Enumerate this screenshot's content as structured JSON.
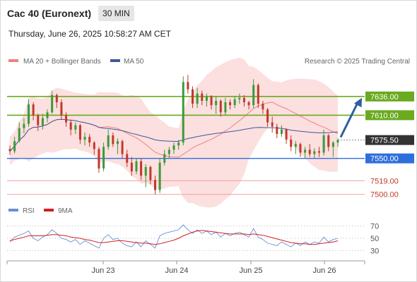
{
  "header": {
    "title": "Cac 40 (Euronext)",
    "interval": "30 MIN",
    "datetime": "Thursday, June 26, 2025 10:58:27 AM CET"
  },
  "legend": {
    "ma20_label": "MA 20 + Bollinger Bands",
    "ma50_label": "MA 50",
    "source": "Research © 2025 Trading Central",
    "rsi_label": "RSI",
    "rsi_ma_label": "9MA"
  },
  "colors": {
    "ma20": "#f08080",
    "bollinger_fill": "#fbd9d9",
    "ma50": "#3d5a99",
    "green_level": "#6aaa1f",
    "blue_level": "#2f6fdb",
    "red_level": "#f2a0a0",
    "price_label": "#333333",
    "arrow": "#2e5fa0",
    "candle_up": "#3a9a3a",
    "candle_down": "#c0392b",
    "rsi": "#6b8fd6",
    "rsi_ma": "#d02020"
  },
  "chart_data": [
    {
      "type": "candlestick",
      "title": "Cac 40 (Euronext)",
      "ylim": [
        7488,
        7676
      ],
      "x_ticks": [
        "Jun 23",
        "Jun 24",
        "Jun 25",
        "Jun 26"
      ],
      "current_price": {
        "label": "7575.50",
        "value": 7575.5
      },
      "levels": [
        {
          "label": "7636.00",
          "value": 7636,
          "kind": "resistance"
        },
        {
          "label": "7610.00",
          "value": 7610,
          "kind": "resistance"
        },
        {
          "label": "7550.00",
          "value": 7550,
          "kind": "pivot"
        },
        {
          "label": "7519.00",
          "value": 7519,
          "kind": "support"
        },
        {
          "label": "7500.00",
          "value": 7500,
          "kind": "support"
        }
      ],
      "candles": [
        [
          7563,
          7568,
          7555,
          7560
        ],
        [
          7560,
          7580,
          7557,
          7574
        ],
        [
          7574,
          7600,
          7572,
          7592
        ],
        [
          7592,
          7606,
          7585,
          7598
        ],
        [
          7598,
          7632,
          7594,
          7625
        ],
        [
          7625,
          7628,
          7603,
          7610
        ],
        [
          7610,
          7612,
          7588,
          7596
        ],
        [
          7596,
          7612,
          7590,
          7606
        ],
        [
          7606,
          7618,
          7600,
          7614
        ],
        [
          7614,
          7644,
          7612,
          7638
        ],
        [
          7638,
          7640,
          7620,
          7628
        ],
        [
          7628,
          7632,
          7604,
          7610
        ],
        [
          7610,
          7614,
          7594,
          7600
        ],
        [
          7600,
          7604,
          7582,
          7590
        ],
        [
          7590,
          7600,
          7584,
          7596
        ],
        [
          7596,
          7598,
          7570,
          7576
        ],
        [
          7576,
          7586,
          7568,
          7580
        ],
        [
          7580,
          7584,
          7566,
          7572
        ],
        [
          7572,
          7574,
          7555,
          7563
        ],
        [
          7563,
          7566,
          7530,
          7536
        ],
        [
          7536,
          7572,
          7532,
          7566
        ],
        [
          7566,
          7590,
          7562,
          7582
        ],
        [
          7582,
          7586,
          7566,
          7570
        ],
        [
          7570,
          7578,
          7556,
          7574
        ],
        [
          7574,
          7576,
          7550,
          7556
        ],
        [
          7556,
          7562,
          7538,
          7544
        ],
        [
          7544,
          7552,
          7526,
          7532
        ],
        [
          7532,
          7550,
          7528,
          7546
        ],
        [
          7546,
          7550,
          7520,
          7526
        ],
        [
          7526,
          7542,
          7510,
          7538
        ],
        [
          7538,
          7540,
          7514,
          7520
        ],
        [
          7520,
          7526,
          7500,
          7506
        ],
        [
          7506,
          7550,
          7502,
          7544
        ],
        [
          7544,
          7562,
          7540,
          7556
        ],
        [
          7556,
          7566,
          7550,
          7562
        ],
        [
          7562,
          7572,
          7556,
          7568
        ],
        [
          7568,
          7576,
          7562,
          7572
        ],
        [
          7572,
          7664,
          7568,
          7656
        ],
        [
          7656,
          7666,
          7640,
          7646
        ],
        [
          7646,
          7650,
          7620,
          7626
        ],
        [
          7626,
          7648,
          7620,
          7640
        ],
        [
          7640,
          7644,
          7624,
          7630
        ],
        [
          7630,
          7640,
          7622,
          7636
        ],
        [
          7636,
          7638,
          7618,
          7624
        ],
        [
          7624,
          7636,
          7612,
          7630
        ],
        [
          7630,
          7632,
          7608,
          7614
        ],
        [
          7614,
          7634,
          7610,
          7628
        ],
        [
          7628,
          7632,
          7618,
          7624
        ],
        [
          7624,
          7636,
          7620,
          7632
        ],
        [
          7632,
          7640,
          7626,
          7634
        ],
        [
          7634,
          7638,
          7622,
          7628
        ],
        [
          7628,
          7630,
          7618,
          7624
        ],
        [
          7624,
          7660,
          7620,
          7652
        ],
        [
          7652,
          7654,
          7620,
          7626
        ],
        [
          7626,
          7630,
          7612,
          7618
        ],
        [
          7618,
          7620,
          7594,
          7600
        ],
        [
          7600,
          7608,
          7586,
          7594
        ],
        [
          7594,
          7598,
          7578,
          7584
        ],
        [
          7584,
          7596,
          7580,
          7590
        ],
        [
          7590,
          7592,
          7570,
          7576
        ],
        [
          7576,
          7582,
          7560,
          7566
        ],
        [
          7566,
          7574,
          7556,
          7570
        ],
        [
          7570,
          7572,
          7552,
          7558
        ],
        [
          7558,
          7566,
          7550,
          7562
        ],
        [
          7562,
          7570,
          7552,
          7556
        ],
        [
          7556,
          7564,
          7550,
          7560
        ],
        [
          7560,
          7566,
          7552,
          7558
        ],
        [
          7558,
          7590,
          7554,
          7582
        ],
        [
          7582,
          7584,
          7560,
          7566
        ],
        [
          7566,
          7574,
          7552,
          7572
        ],
        [
          7572,
          7578,
          7566,
          7575.5
        ]
      ]
    },
    {
      "type": "line",
      "title": "RSI",
      "ylim": [
        20,
        80
      ],
      "y_ticks": [
        70,
        50,
        30
      ],
      "series": [
        {
          "name": "RSI",
          "values": [
            44,
            52,
            55,
            58,
            62,
            50,
            46,
            52,
            56,
            64,
            58,
            50,
            48,
            44,
            48,
            40,
            46,
            42,
            38,
            34,
            50,
            56,
            48,
            50,
            42,
            38,
            36,
            44,
            36,
            46,
            40,
            34,
            54,
            58,
            60,
            62,
            64,
            72,
            64,
            58,
            64,
            58,
            62,
            56,
            60,
            52,
            58,
            54,
            58,
            60,
            56,
            52,
            66,
            52,
            48,
            42,
            40,
            38,
            44,
            40,
            36,
            42,
            38,
            44,
            40,
            44,
            42,
            52,
            44,
            48,
            50
          ]
        },
        {
          "name": "9MA",
          "values": [
            46,
            48,
            50,
            52,
            54,
            54,
            54,
            54,
            55,
            56,
            56,
            55,
            54,
            52,
            51,
            50,
            48,
            47,
            45,
            43,
            43,
            44,
            45,
            46,
            46,
            45,
            44,
            43,
            42,
            42,
            41,
            40,
            41,
            43,
            45,
            47,
            50,
            54,
            57,
            60,
            62,
            63,
            62,
            61,
            60,
            59,
            58,
            57,
            57,
            57,
            57,
            56,
            57,
            56,
            55,
            53,
            51,
            49,
            47,
            45,
            43,
            42,
            41,
            41,
            40,
            40,
            41,
            42,
            43,
            44,
            46
          ]
        }
      ]
    }
  ]
}
